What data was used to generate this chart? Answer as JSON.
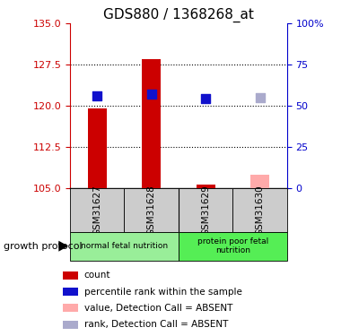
{
  "title": "GDS880 / 1368268_at",
  "samples": [
    "GSM31627",
    "GSM31628",
    "GSM31629",
    "GSM31630"
  ],
  "ylim_left": [
    105,
    135
  ],
  "ylim_right": [
    0,
    100
  ],
  "yticks_left": [
    105,
    112.5,
    120,
    127.5,
    135
  ],
  "yticks_right": [
    0,
    25,
    50,
    75,
    100
  ],
  "ytick_labels_right": [
    "0",
    "25",
    "50",
    "75",
    "100%"
  ],
  "bar_values": [
    119.5,
    128.5,
    105.7,
    107.5
  ],
  "bar_colors": [
    "#cc0000",
    "#cc0000",
    "#cc0000",
    "#ffaaaa"
  ],
  "bar_bottom": 105,
  "dot_values": [
    121.8,
    122.2,
    121.3,
    121.5
  ],
  "dot_colors": [
    "#1111cc",
    "#1111cc",
    "#1111cc",
    "#aaaacc"
  ],
  "dotted_yticks": [
    112.5,
    120.0,
    127.5
  ],
  "bar_width": 0.35,
  "dot_size": 50,
  "group_labels": [
    {
      "label": "normal fetal nutrition",
      "cols": [
        0,
        1
      ],
      "color": "#99ee99"
    },
    {
      "label": "protein poor fetal\nnutrition",
      "cols": [
        2,
        3
      ],
      "color": "#55ee55"
    }
  ],
  "legend_items": [
    {
      "color": "#cc0000",
      "label": "count"
    },
    {
      "color": "#1111cc",
      "label": "percentile rank within the sample"
    },
    {
      "color": "#ffaaaa",
      "label": "value, Detection Call = ABSENT"
    },
    {
      "color": "#aaaacc",
      "label": "rank, Detection Call = ABSENT"
    }
  ],
  "growth_protocol_label": "growth protocol"
}
